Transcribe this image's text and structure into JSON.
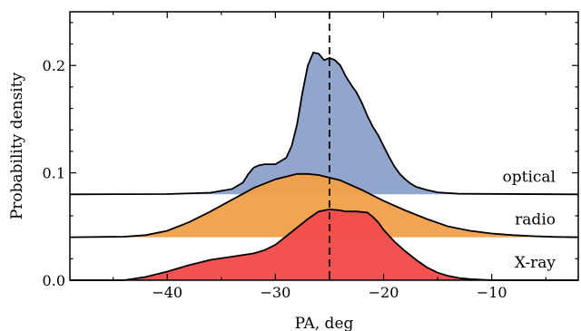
{
  "chart_data": {
    "type": "area",
    "title": "",
    "xlabel": "PA, deg",
    "ylabel": "Probability density",
    "xlim": [
      -49,
      -2
    ],
    "ylim": [
      0,
      0.25
    ],
    "xticks": [
      -40,
      -30,
      -20,
      -10
    ],
    "xtick_labels": [
      "−40",
      "−30",
      "−20",
      "−10"
    ],
    "yticks": [
      0.0,
      0.1,
      0.2
    ],
    "ytick_labels": [
      "0.0",
      "0.1",
      "0.2"
    ],
    "vline_x": -25,
    "series": [
      {
        "name": "optical",
        "color": "#8da1cb",
        "baseline": 0.08,
        "x": [
          -49,
          -40,
          -36,
          -34,
          -33,
          -32.5,
          -32,
          -31.5,
          -31,
          -30,
          -29,
          -28.5,
          -28,
          -27.5,
          -27,
          -26.5,
          -26,
          -25.5,
          -25,
          -24.5,
          -24,
          -23.5,
          -23,
          -22.5,
          -22,
          -21.5,
          -21,
          -20.5,
          -20,
          -19.5,
          -19,
          -18.5,
          -18,
          -17.5,
          -17,
          -16,
          -15,
          -13,
          -2
        ],
        "y": [
          0.08,
          0.0802,
          0.0815,
          0.085,
          0.091,
          0.099,
          0.105,
          0.107,
          0.108,
          0.108,
          0.114,
          0.125,
          0.145,
          0.175,
          0.2,
          0.212,
          0.211,
          0.205,
          0.207,
          0.205,
          0.2,
          0.19,
          0.182,
          0.175,
          0.165,
          0.153,
          0.143,
          0.135,
          0.125,
          0.115,
          0.106,
          0.099,
          0.094,
          0.09,
          0.087,
          0.084,
          0.0818,
          0.0805,
          0.08
        ]
      },
      {
        "name": "radio",
        "color": "#f0a04b",
        "baseline": 0.04,
        "x": [
          -49,
          -44,
          -42,
          -40,
          -38,
          -36,
          -34,
          -32,
          -30,
          -28,
          -27,
          -26,
          -24,
          -22,
          -20,
          -18,
          -16,
          -14,
          -12,
          -10,
          -8,
          -6,
          -4,
          -2
        ],
        "y": [
          0.04,
          0.0405,
          0.042,
          0.046,
          0.054,
          0.064,
          0.075,
          0.086,
          0.094,
          0.099,
          0.099,
          0.098,
          0.093,
          0.084,
          0.074,
          0.065,
          0.057,
          0.05,
          0.046,
          0.0435,
          0.042,
          0.041,
          0.0403,
          0.04
        ]
      },
      {
        "name": "X-ray",
        "color": "#f24b4b",
        "baseline": 0.0,
        "x": [
          -49,
          -44,
          -42,
          -40,
          -38,
          -36,
          -34,
          -32,
          -31,
          -30,
          -29,
          -28,
          -27,
          -26,
          -25,
          -24,
          -23.5,
          -22.5,
          -21.5,
          -21,
          -20.5,
          -20,
          -19,
          -18,
          -17,
          -16,
          -15,
          -14,
          -13,
          -12,
          -10,
          -8,
          -2
        ],
        "y": [
          0.0,
          0.0,
          0.003,
          0.008,
          0.014,
          0.019,
          0.022,
          0.025,
          0.028,
          0.033,
          0.041,
          0.049,
          0.057,
          0.064,
          0.066,
          0.065,
          0.064,
          0.064,
          0.063,
          0.059,
          0.054,
          0.047,
          0.036,
          0.027,
          0.019,
          0.012,
          0.007,
          0.004,
          0.002,
          0.001,
          0.0,
          0.0,
          0.0
        ]
      }
    ]
  }
}
